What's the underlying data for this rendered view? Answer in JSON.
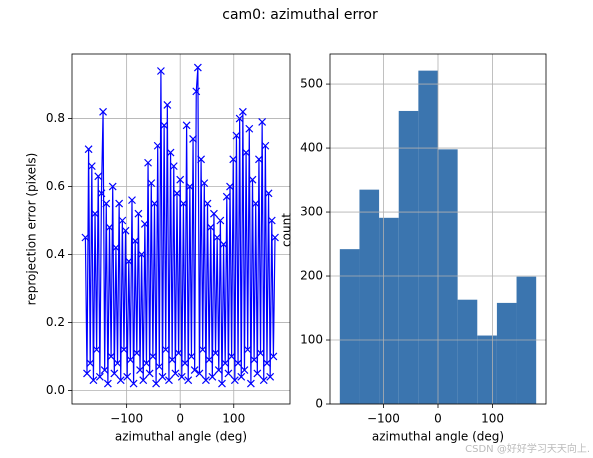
{
  "title": "cam0: azimuthal error",
  "watermark": "CSDN @好好学习天天向上.",
  "chart_data": [
    {
      "type": "line",
      "xlabel": "azimuthal angle (deg)",
      "ylabel": "reprojection error (pixels)",
      "x": [
        -177,
        -174,
        -171,
        -168,
        -165,
        -162,
        -159,
        -156,
        -153,
        -150,
        -147,
        -144,
        -141,
        -138,
        -135,
        -132,
        -129,
        -126,
        -123,
        -120,
        -117,
        -114,
        -111,
        -108,
        -105,
        -102,
        -99,
        -96,
        -93,
        -90,
        -87,
        -84,
        -81,
        -78,
        -75,
        -72,
        -69,
        -66,
        -63,
        -60,
        -57,
        -54,
        -51,
        -48,
        -45,
        -42,
        -39,
        -36,
        -33,
        -30,
        -27,
        -24,
        -21,
        -18,
        -15,
        -12,
        -9,
        -6,
        -3,
        0,
        3,
        6,
        9,
        12,
        15,
        18,
        21,
        24,
        27,
        30,
        33,
        36,
        39,
        42,
        45,
        48,
        51,
        54,
        57,
        60,
        63,
        66,
        69,
        72,
        75,
        78,
        81,
        84,
        87,
        90,
        93,
        96,
        99,
        102,
        105,
        108,
        111,
        114,
        117,
        120,
        123,
        126,
        129,
        132,
        135,
        138,
        141,
        144,
        147,
        150,
        153,
        156,
        159,
        162,
        165,
        168,
        171,
        174,
        177
      ],
      "series": [
        {
          "color": "#0000ff",
          "values": [
            0.45,
            0.05,
            0.71,
            0.08,
            0.66,
            0.03,
            0.52,
            0.12,
            0.63,
            0.04,
            0.58,
            0.82,
            0.06,
            0.55,
            0.02,
            0.48,
            0.1,
            0.6,
            0.05,
            0.42,
            0.08,
            0.55,
            0.03,
            0.5,
            0.12,
            0.47,
            0.04,
            0.38,
            0.09,
            0.56,
            0.02,
            0.44,
            0.11,
            0.52,
            0.06,
            0.4,
            0.03,
            0.49,
            0.08,
            0.67,
            0.05,
            0.61,
            0.1,
            0.55,
            0.02,
            0.72,
            0.07,
            0.94,
            0.04,
            0.78,
            0.12,
            0.84,
            0.03,
            0.7,
            0.09,
            0.66,
            0.05,
            0.58,
            0.11,
            0.62,
            0.04,
            0.55,
            0.08,
            0.78,
            0.03,
            0.6,
            0.1,
            0.74,
            0.06,
            0.88,
            0.95,
            0.05,
            0.68,
            0.12,
            0.61,
            0.03,
            0.55,
            0.09,
            0.48,
            0.04,
            0.52,
            0.11,
            0.45,
            0.06,
            0.5,
            0.02,
            0.43,
            0.08,
            0.57,
            0.05,
            0.6,
            0.1,
            0.68,
            0.03,
            0.75,
            0.08,
            0.8,
            0.04,
            0.82,
            0.06,
            0.7,
            0.12,
            0.77,
            0.02,
            0.62,
            0.09,
            0.55,
            0.05,
            0.68,
            0.11,
            0.79,
            0.03,
            0.72,
            0.08,
            0.58,
            0.04,
            0.5,
            0.1,
            0.45
          ]
        }
      ],
      "xlim": [
        -202,
        205
      ],
      "ylim": [
        -0.04,
        0.99
      ],
      "xticks": [
        {
          "value": -100,
          "label": "−100"
        },
        0,
        100
      ],
      "yticks": [
        {
          "value": 0,
          "label": "0.0"
        },
        0.2,
        0.4,
        0.6,
        0.8
      ],
      "grid": true
    },
    {
      "type": "histogram",
      "xlabel": "azimuthal angle (deg)",
      "ylabel": "count",
      "bins": [
        -180,
        -144,
        -108,
        -72,
        -36,
        0,
        36,
        72,
        108,
        144,
        180
      ],
      "values": [
        242,
        335,
        291,
        458,
        521,
        398,
        163,
        107,
        158,
        199
      ],
      "color": "#3b75af",
      "xlim": [
        -198,
        198
      ],
      "ylim": [
        0,
        547
      ],
      "xticks": [
        {
          "value": -100,
          "label": "−100"
        },
        0,
        100
      ],
      "yticks": [
        0,
        100,
        200,
        300,
        400,
        500
      ],
      "grid": true
    }
  ]
}
